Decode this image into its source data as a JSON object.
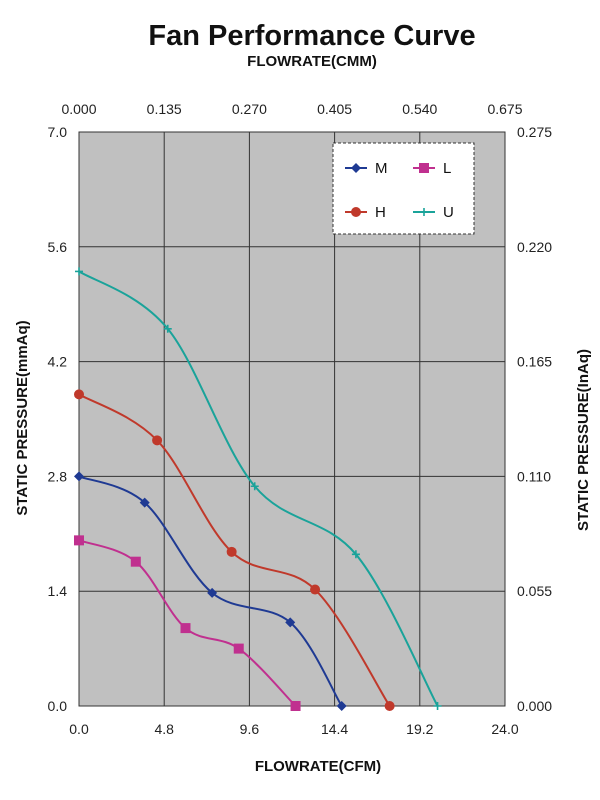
{
  "chart_data": {
    "type": "line",
    "title": "Fan Performance Curve",
    "x_top_label": "FLOWRATE(CMM)",
    "x_top_ticks": [
      "0.000",
      "0.135",
      "0.270",
      "0.405",
      "0.540",
      "0.675"
    ],
    "x_bottom_label": "FLOWRATE(CFM)",
    "x_bottom_ticks": [
      "0.0",
      "4.8",
      "9.6",
      "14.4",
      "19.2",
      "24.0"
    ],
    "xlim": [
      0,
      24
    ],
    "y_left_label": "STATIC PRESSURE(mmAq)",
    "y_left_ticks": [
      "0.0",
      "1.4",
      "2.8",
      "4.2",
      "5.6",
      "7.0"
    ],
    "ylim": [
      0,
      7
    ],
    "y_right_label": "STATIC PRESSURE(InAq)",
    "y_right_ticks": [
      "0.000",
      "0.055",
      "0.110",
      "0.165",
      "0.220",
      "0.275"
    ],
    "grid": true,
    "legend_position": "top-right",
    "series": [
      {
        "name": "M",
        "color": "#1f3a93",
        "marker": "diamond",
        "x": [
          0.0,
          3.7,
          7.5,
          11.9,
          14.8
        ],
        "y": [
          2.8,
          2.48,
          1.38,
          1.02,
          0.0
        ]
      },
      {
        "name": "L",
        "color": "#c0308f",
        "marker": "square",
        "x": [
          0.0,
          3.2,
          6.0,
          9.0,
          12.2
        ],
        "y": [
          2.02,
          1.76,
          0.95,
          0.7,
          0.0
        ]
      },
      {
        "name": "H",
        "color": "#c0392b",
        "marker": "circle",
        "x": [
          0.0,
          4.4,
          8.6,
          13.3,
          17.5
        ],
        "y": [
          3.8,
          3.24,
          1.88,
          1.42,
          0.0
        ]
      },
      {
        "name": "U",
        "color": "#1aa39a",
        "marker": "plus",
        "x": [
          0.0,
          5.0,
          9.9,
          15.6,
          20.2
        ],
        "y": [
          5.3,
          4.6,
          2.68,
          1.85,
          0.0
        ]
      }
    ]
  }
}
